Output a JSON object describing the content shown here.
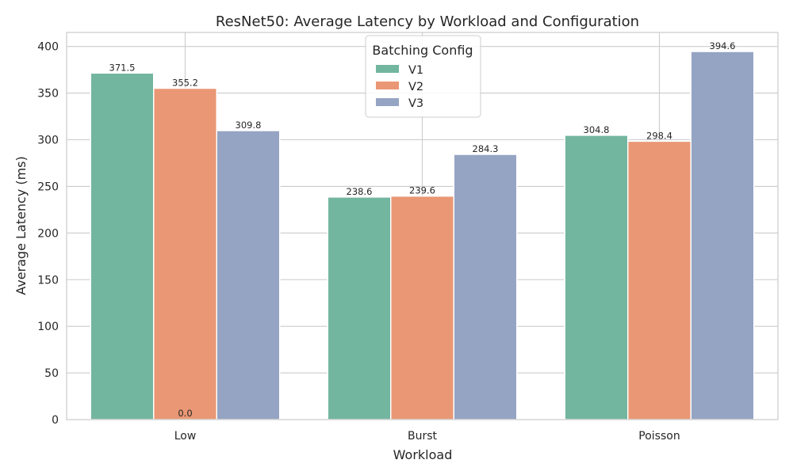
{
  "chart_data": {
    "type": "bar",
    "title": "ResNet50: Average Latency by Workload and Configuration",
    "xlabel": "Workload",
    "ylabel": "Average Latency (ms)",
    "categories": [
      "Low",
      "Burst",
      "Poisson"
    ],
    "ylim": [
      0,
      415
    ],
    "yticks": [
      0,
      50,
      100,
      150,
      200,
      250,
      300,
      350,
      400
    ],
    "grid": true,
    "legend": {
      "title": "Batching Config",
      "placement": "top-center"
    },
    "series": [
      {
        "name": "V1",
        "color": "#73b6a0",
        "values": [
          371.5,
          238.6,
          304.8
        ],
        "labels": [
          "371.5",
          "238.6",
          "304.8"
        ]
      },
      {
        "name": "V2",
        "color": "#e99774",
        "values": [
          355.2,
          239.6,
          298.4
        ],
        "labels": [
          "355.2",
          "239.6",
          "298.4"
        ]
      },
      {
        "name": "V3",
        "color": "#95a4c3",
        "values": [
          309.8,
          284.3,
          394.6
        ],
        "labels": [
          "309.8",
          "284.3",
          "394.6"
        ]
      }
    ],
    "annotations": [
      {
        "text": "0.0",
        "category": "Low",
        "series": "V2",
        "y": 0
      }
    ]
  }
}
